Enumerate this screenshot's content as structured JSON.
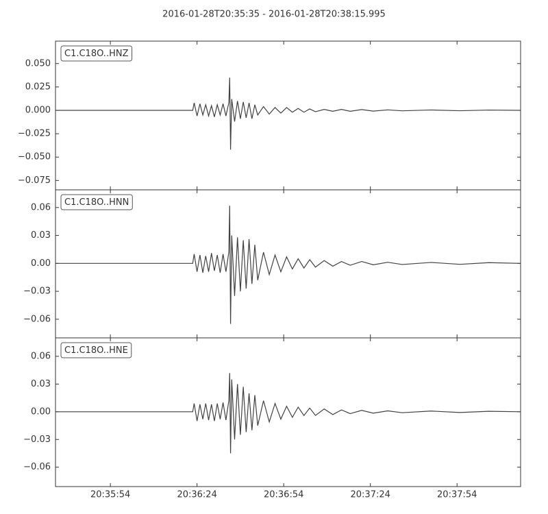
{
  "title": "2016-01-28T20:35:35  -  2016-01-28T20:38:15.995",
  "chart_data": [
    {
      "type": "line",
      "title": "C1.C18O..HNZ",
      "color": "#404040",
      "x": [
        0,
        47.5,
        48,
        49,
        50,
        51,
        52,
        53,
        54,
        55,
        56,
        57,
        58,
        59,
        60,
        60.3,
        60.6,
        61,
        62,
        63,
        64,
        65,
        66,
        67,
        68,
        69,
        70,
        72,
        74,
        76,
        78,
        80,
        82,
        84,
        86,
        88,
        90,
        93,
        96,
        99,
        102,
        106,
        110,
        115,
        120,
        130,
        140,
        150,
        161
      ],
      "values": [
        0,
        0,
        0.008,
        -0.006,
        0.007,
        -0.005,
        0.006,
        -0.006,
        0.005,
        -0.007,
        0.006,
        -0.005,
        0.007,
        -0.006,
        0.008,
        0.035,
        -0.042,
        0.012,
        -0.012,
        0.01,
        -0.009,
        0.009,
        -0.008,
        0.008,
        -0.009,
        0.006,
        -0.005,
        0.004,
        -0.004,
        0.003,
        -0.003,
        0.003,
        -0.002,
        0.002,
        -0.002,
        0.0015,
        -0.0015,
        0.001,
        -0.001,
        0.001,
        -0.001,
        0.0008,
        -0.0008,
        0.0005,
        -0.0005,
        0.0004,
        -0.0004,
        0.0003,
        0
      ],
      "xlim": [
        0,
        160.995
      ],
      "ylim": [
        -0.085,
        0.074
      ],
      "yticks": [
        {
          "value": 0.05,
          "label": "0.050"
        },
        {
          "value": 0.025,
          "label": "0.025"
        },
        {
          "value": 0,
          "label": "0.000"
        },
        {
          "value": -0.025,
          "label": "−0.025"
        },
        {
          "value": -0.05,
          "label": "−0.050"
        },
        {
          "value": -0.075,
          "label": "−0.075"
        }
      ]
    },
    {
      "type": "line",
      "title": "C1.C18O..HNN",
      "color": "#404040",
      "x": [
        0,
        47.5,
        48,
        49,
        50,
        51,
        52,
        53,
        54,
        55,
        56,
        57,
        58,
        59,
        60,
        60.3,
        60.6,
        61,
        62,
        63,
        64,
        65,
        66,
        67,
        68,
        69,
        70,
        72,
        74,
        76,
        78,
        80,
        82,
        84,
        86,
        88,
        90,
        93,
        96,
        99,
        102,
        106,
        110,
        115,
        120,
        130,
        140,
        150,
        161
      ],
      "values": [
        0,
        0,
        0.01,
        -0.009,
        0.009,
        -0.01,
        0.008,
        -0.009,
        0.011,
        -0.008,
        0.009,
        -0.01,
        0.01,
        -0.009,
        0.012,
        0.062,
        -0.065,
        0.03,
        -0.035,
        0.028,
        -0.03,
        0.025,
        -0.027,
        0.026,
        -0.022,
        0.02,
        -0.018,
        0.012,
        -0.012,
        0.009,
        -0.009,
        0.007,
        -0.006,
        0.005,
        -0.005,
        0.004,
        -0.004,
        0.003,
        -0.003,
        0.002,
        -0.002,
        0.002,
        -0.0015,
        0.0012,
        -0.0012,
        0.001,
        -0.001,
        0.0008,
        0
      ],
      "xlim": [
        0,
        160.995
      ],
      "ylim": [
        -0.08,
        0.079
      ],
      "yticks": [
        {
          "value": 0.06,
          "label": "0.06"
        },
        {
          "value": 0.03,
          "label": "0.03"
        },
        {
          "value": 0,
          "label": "0.00"
        },
        {
          "value": -0.03,
          "label": "−0.03"
        },
        {
          "value": -0.06,
          "label": "−0.06"
        }
      ]
    },
    {
      "type": "line",
      "title": "C1.C18O..HNE",
      "color": "#404040",
      "x": [
        0,
        47.5,
        48,
        49,
        50,
        51,
        52,
        53,
        54,
        55,
        56,
        57,
        58,
        59,
        60,
        60.3,
        60.6,
        61,
        62,
        63,
        64,
        65,
        66,
        67,
        68,
        69,
        70,
        72,
        74,
        76,
        78,
        80,
        82,
        84,
        86,
        88,
        90,
        93,
        96,
        99,
        102,
        106,
        110,
        115,
        120,
        130,
        140,
        150,
        161
      ],
      "values": [
        0,
        0,
        0.009,
        -0.01,
        0.008,
        -0.008,
        0.009,
        -0.009,
        0.008,
        -0.01,
        0.009,
        -0.008,
        0.01,
        -0.009,
        0.012,
        0.042,
        -0.045,
        0.035,
        -0.03,
        0.03,
        -0.025,
        0.027,
        -0.022,
        0.02,
        -0.02,
        0.018,
        -0.015,
        0.012,
        -0.011,
        0.009,
        -0.008,
        0.006,
        -0.006,
        0.005,
        -0.004,
        0.004,
        -0.004,
        0.003,
        -0.003,
        0.002,
        -0.002,
        0.0015,
        -0.0015,
        0.001,
        -0.001,
        0.0008,
        -0.0008,
        0.0005,
        0
      ],
      "xlim": [
        0,
        160.995
      ],
      "ylim": [
        -0.081,
        0.08
      ],
      "yticks": [
        {
          "value": 0.06,
          "label": "0.06"
        },
        {
          "value": 0.03,
          "label": "0.03"
        },
        {
          "value": 0,
          "label": "0.00"
        },
        {
          "value": -0.03,
          "label": "−0.03"
        },
        {
          "value": -0.06,
          "label": "−0.06"
        }
      ],
      "xticks": [
        {
          "value": 19,
          "label": "20:35:54"
        },
        {
          "value": 49,
          "label": "20:36:24"
        },
        {
          "value": 79,
          "label": "20:36:54"
        },
        {
          "value": 109,
          "label": "20:37:24"
        },
        {
          "value": 139,
          "label": "20:37:54"
        }
      ]
    }
  ]
}
